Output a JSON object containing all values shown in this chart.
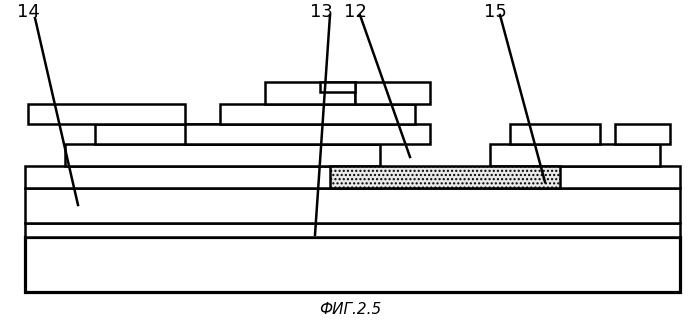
{
  "title": "ФИГ.2.5",
  "title_fontsize": 11,
  "bg_color": "#ffffff",
  "line_color": "#000000",
  "lw": 1.8,
  "figsize": [
    7.0,
    3.22
  ],
  "dpi": 100
}
